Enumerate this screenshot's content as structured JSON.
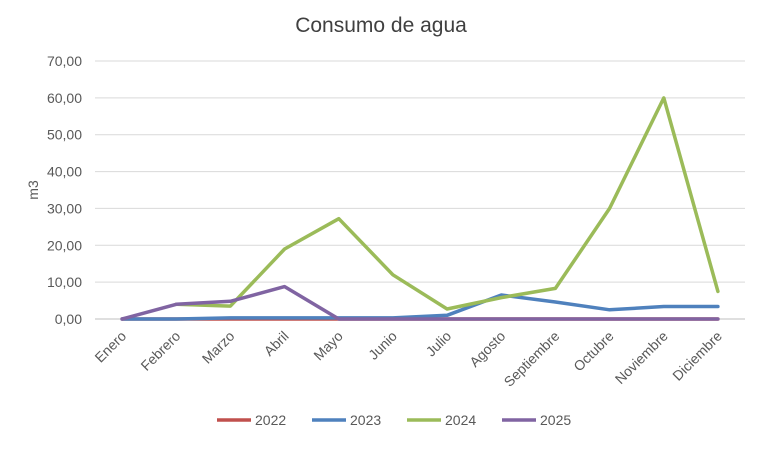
{
  "chart_data": {
    "type": "line",
    "title": "Consumo de agua",
    "xlabel": "",
    "ylabel": "m3",
    "ylim": [
      0,
      70
    ],
    "yticks": [
      "0,00",
      "10,00",
      "20,00",
      "30,00",
      "40,00",
      "50,00",
      "60,00",
      "70,00"
    ],
    "grid": true,
    "legend_position": "bottom",
    "categories": [
      "Enero",
      "Febrero",
      "Marzo",
      "Abril",
      "Mayo",
      "Junio",
      "Julio",
      "Agosto",
      "Septiembre",
      "Octubre",
      "Noviembre",
      "Diciembre"
    ],
    "series": [
      {
        "name": "2022",
        "color": "#C0504D",
        "values": [
          0,
          0,
          0,
          0,
          0,
          0,
          0,
          0,
          0,
          0,
          0,
          0
        ]
      },
      {
        "name": "2023",
        "color": "#4F81BD",
        "values": [
          0,
          0,
          0.3,
          0.3,
          0.3,
          0.3,
          1,
          6.5,
          4.6,
          2.5,
          3.4,
          3.4
        ]
      },
      {
        "name": "2024",
        "color": "#9BBB59",
        "values": [
          null,
          4,
          3.5,
          19,
          27.2,
          12,
          2.7,
          5.8,
          8.3,
          30,
          60,
          7.5
        ]
      },
      {
        "name": "2025",
        "color": "#8064A2",
        "values": [
          0,
          4,
          4.8,
          8.8,
          0,
          0,
          0,
          0,
          0,
          0,
          0,
          0
        ]
      }
    ]
  }
}
